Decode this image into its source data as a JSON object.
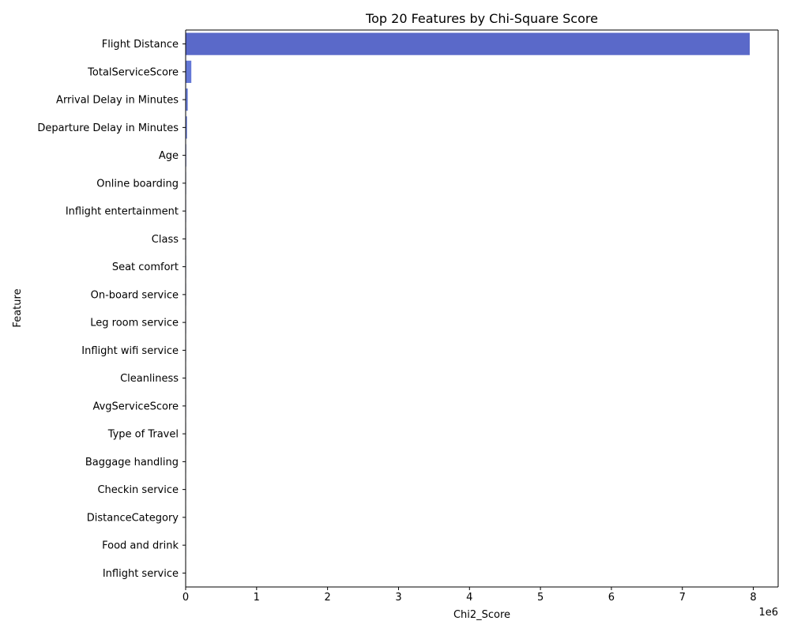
{
  "chart_data": {
    "type": "bar",
    "orientation": "horizontal",
    "title": "Top 20 Features by Chi-Square Score",
    "xlabel": "Chi2_Score",
    "ylabel": "Feature",
    "x_scale_label": "1e6",
    "xlim": [
      0,
      8350000
    ],
    "xticks": [
      0,
      1000000,
      2000000,
      3000000,
      4000000,
      5000000,
      6000000,
      7000000,
      8000000
    ],
    "xtick_labels": [
      "0",
      "1",
      "2",
      "3",
      "4",
      "5",
      "6",
      "7",
      "8"
    ],
    "grid": false,
    "categories": [
      "Flight Distance",
      "TotalServiceScore",
      "Arrival Delay in Minutes",
      "Departure Delay in Minutes",
      "Age",
      "Online boarding",
      "Inflight entertainment",
      "Class",
      "Seat comfort",
      "On-board service",
      "Leg room service",
      "Inflight wifi service",
      "Cleanliness",
      "AvgServiceScore",
      "Type of Travel",
      "Baggage handling",
      "Checkin service",
      "DistanceCategory",
      "Food and drink",
      "Inflight service"
    ],
    "values": [
      7950000,
      80000,
      30000,
      20000,
      9000,
      5000,
      4500,
      4000,
      3500,
      3000,
      2800,
      2600,
      2400,
      2200,
      2000,
      1800,
      1600,
      1400,
      1200,
      1000
    ],
    "colors": [
      "#5a69c9",
      "#6478d6",
      "#6a7fd8",
      "#7082d8",
      "#7885d8",
      "#7f8ad8",
      "#8690d8",
      "#8c95d8",
      "#929ad8",
      "#98a0d8",
      "#9ea6d8",
      "#a4acd8",
      "#aab2d8",
      "#b0b8d8",
      "#b6bed8",
      "#bcc4d8",
      "#c2cad8",
      "#c8d0d8",
      "#ced6d8",
      "#d4dcd8"
    ]
  }
}
